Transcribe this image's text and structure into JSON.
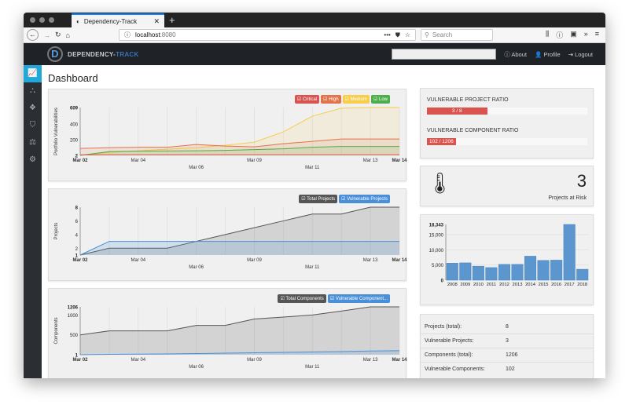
{
  "browser": {
    "tab_title": "Dependency-Track",
    "url_host": "localhost",
    "url_port": ":8080",
    "search_placeholder": "Search"
  },
  "nav": {
    "brand_a": "DEPENDENCY-",
    "brand_b": "TRACK",
    "about": "About",
    "profile": "Profile",
    "logout": "Logout"
  },
  "sidebar": {
    "items": [
      {
        "icon": "dashboard-icon",
        "glyph": "📈"
      },
      {
        "icon": "projects-icon",
        "glyph": "⛬"
      },
      {
        "icon": "components-icon",
        "glyph": "❖"
      },
      {
        "icon": "vulnerabilities-icon",
        "glyph": "⛉"
      },
      {
        "icon": "licenses-icon",
        "glyph": "⚖"
      },
      {
        "icon": "settings-icon",
        "glyph": "⚙"
      }
    ]
  },
  "page": {
    "title": "Dashboard"
  },
  "colors": {
    "critical": "#d9534f",
    "high": "#e0734a",
    "medium": "#f7cd4a",
    "low": "#4cae4c",
    "total": "#555555",
    "vulnerable": "#4a90d9",
    "bars": "#5b96cf"
  },
  "ratios": {
    "project_label": "VULNERABLE PROJECT RATIO",
    "project_text": "3 / 8",
    "project_fraction": 0.375,
    "component_label": "VULNERABLE COMPONENT RATIO",
    "component_text": "102 / 1206",
    "component_fraction": 0.0846
  },
  "risk": {
    "value": "3",
    "label": "Projects at Risk"
  },
  "stats": [
    {
      "label": "Projects (total):",
      "value": "8"
    },
    {
      "label": "Vulnerable Projects:",
      "value": "3"
    },
    {
      "label": "Components (total):",
      "value": "1206"
    },
    {
      "label": "Vulnerable Components:",
      "value": "102"
    }
  ],
  "chart_data": [
    {
      "type": "area",
      "ylabel": "Portfolio Vulnerabilities",
      "yticks": [
        2,
        200,
        400,
        609
      ],
      "ylim": [
        2,
        609
      ],
      "x_labels": [
        "Mar 02",
        "",
        "Mar 04",
        "",
        "Mar 06",
        "",
        "Mar 09",
        "",
        "Mar 11",
        "",
        "Mar 13",
        "Mar 14"
      ],
      "series": [
        {
          "name": "Critical",
          "color": "#d9534f",
          "values": [
            8,
            10,
            10,
            10,
            10,
            10,
            10,
            10,
            10,
            10,
            10,
            10
          ]
        },
        {
          "name": "High",
          "color": "#e0734a",
          "values": [
            90,
            100,
            105,
            105,
            140,
            120,
            110,
            150,
            180,
            210,
            210,
            210
          ]
        },
        {
          "name": "Medium",
          "color": "#f7cd4a",
          "values": [
            2,
            40,
            60,
            80,
            100,
            130,
            170,
            300,
            500,
            600,
            609,
            609
          ]
        },
        {
          "name": "Low",
          "color": "#4cae4c",
          "values": [
            2,
            50,
            55,
            58,
            60,
            65,
            75,
            85,
            105,
            115,
            115,
            115
          ]
        }
      ]
    },
    {
      "type": "area",
      "ylabel": "Projects",
      "yticks": [
        1,
        2,
        4,
        6,
        8
      ],
      "ylim": [
        1,
        8
      ],
      "x_labels": [
        "Mar 02",
        "",
        "Mar 04",
        "",
        "Mar 06",
        "",
        "Mar 09",
        "",
        "Mar 11",
        "",
        "Mar 13",
        "Mar 14"
      ],
      "series": [
        {
          "name": "Total Projects",
          "color": "#555555",
          "values": [
            1,
            2,
            2,
            2,
            3,
            4,
            5,
            6,
            7,
            7,
            8,
            8
          ]
        },
        {
          "name": "Vulnerable Projects",
          "color": "#4a90d9",
          "values": [
            1,
            3,
            3,
            3,
            3,
            3,
            3,
            3,
            3,
            3,
            3,
            3
          ]
        }
      ]
    },
    {
      "type": "area",
      "ylabel": "Components",
      "yticks": [
        1,
        500,
        1000,
        1206
      ],
      "ylim": [
        1,
        1206
      ],
      "x_labels": [
        "Mar 02",
        "",
        "Mar 04",
        "",
        "Mar 06",
        "",
        "Mar 09",
        "",
        "Mar 11",
        "",
        "Mar 13",
        "Mar 14"
      ],
      "series": [
        {
          "name": "Total Components",
          "color": "#555555",
          "values": [
            500,
            600,
            600,
            600,
            740,
            740,
            900,
            950,
            1000,
            1100,
            1206,
            1206
          ]
        },
        {
          "name": "Vulnerable Component...",
          "color": "#4a90d9",
          "values": [
            1,
            10,
            15,
            20,
            30,
            40,
            50,
            60,
            70,
            80,
            95,
            102
          ]
        }
      ]
    },
    {
      "type": "bar",
      "categories": [
        "2008",
        "2009",
        "2010",
        "2011",
        "2012",
        "2013",
        "2014",
        "2015",
        "2016",
        "2017",
        "2018"
      ],
      "values": [
        5600,
        5700,
        4600,
        4150,
        5200,
        5200,
        7900,
        6500,
        6600,
        18343,
        3600
      ],
      "yticks": [
        0,
        5000,
        10000,
        18343
      ],
      "ytick_labels": [
        "0",
        "5,000",
        "10,000",
        "18,343"
      ],
      "extra_tick": 15000,
      "extra_tick_label": "15,000",
      "ylim": [
        0,
        18343
      ]
    }
  ]
}
